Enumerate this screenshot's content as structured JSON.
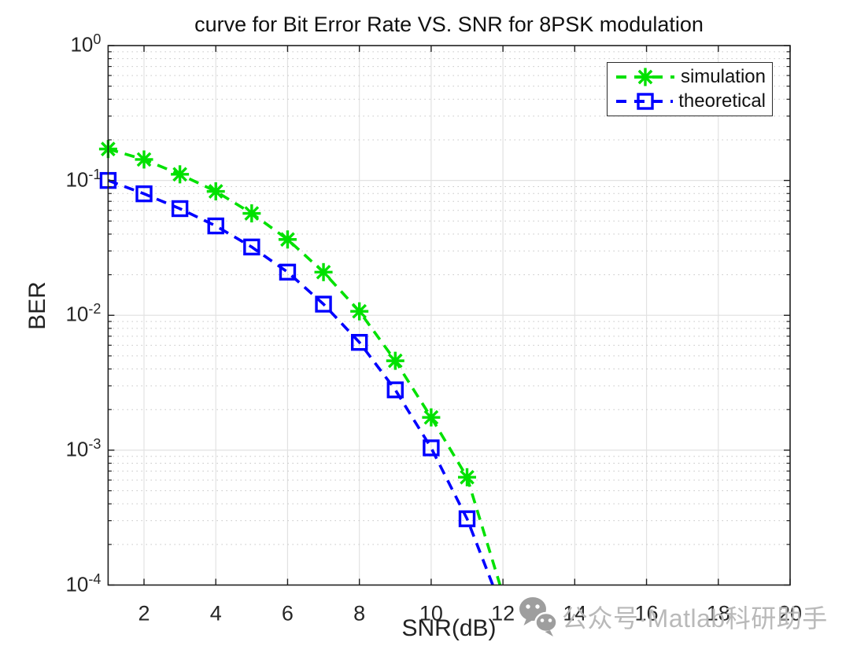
{
  "chart_data": {
    "type": "line",
    "title": "curve for Bit Error Rate VS. SNR for 8PSK modulation",
    "xlabel": "SNR(dB)",
    "ylabel": "BER",
    "xlim": [
      1,
      20
    ],
    "ylim": [
      0.0001,
      1
    ],
    "y_scale": "log",
    "x_ticks": [
      2,
      4,
      6,
      8,
      10,
      12,
      14,
      16,
      18,
      20
    ],
    "y_tick_exponents": [
      0,
      -1,
      -2,
      -3,
      -4
    ],
    "grid": {
      "major": true,
      "minor_y_dotted": true,
      "box": true
    },
    "legend_position": "top-right",
    "x": [
      1,
      2,
      3,
      4,
      5,
      6,
      7,
      8,
      9,
      10,
      11,
      12
    ],
    "series": [
      {
        "name": "simulation",
        "color": "#00e100",
        "marker": "asterisk",
        "line_style": "dashed",
        "values": [
          0.171,
          0.143,
          0.111,
          0.083,
          0.057,
          0.0365,
          0.0209,
          0.0107,
          0.0046,
          0.00175,
          0.00063,
          8.5e-05
        ]
      },
      {
        "name": "theoretical",
        "color": "#0000ff",
        "marker": "square",
        "line_style": "dashed",
        "values": [
          0.1,
          0.0796,
          0.0618,
          0.046,
          0.0321,
          0.0209,
          0.0121,
          0.0063,
          0.0028,
          0.00104,
          0.00031,
          6.4e-05
        ]
      }
    ]
  },
  "watermark": {
    "text": "公众号·Matlab科研助手",
    "icon": "wechat-icon"
  }
}
